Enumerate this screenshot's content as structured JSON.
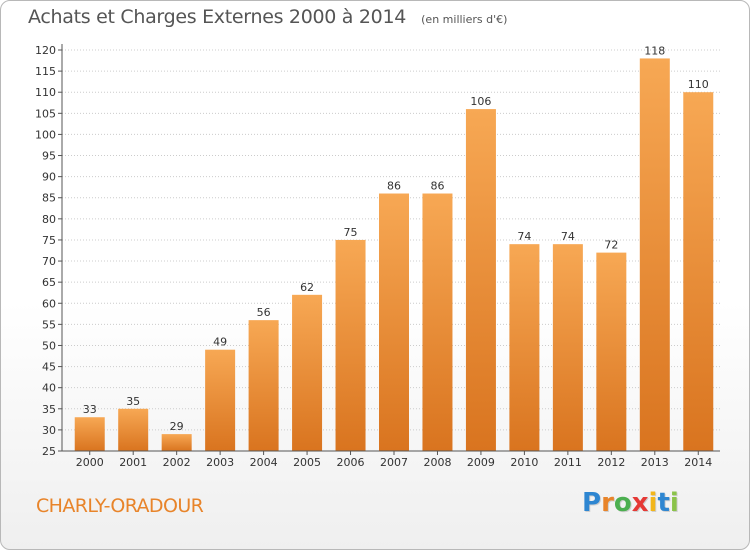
{
  "header": {
    "title": "Achats et Charges Externes 2000 à 2014",
    "subtitle": "(en milliers d'€)"
  },
  "footer": {
    "commune": "CHARLY-ORADOUR",
    "logo_letters": [
      "P",
      "r",
      "o",
      "x",
      "i",
      "t",
      "i"
    ],
    "logo_colors": [
      "#2e86d1",
      "#e8842a",
      "#4caf50",
      "#e53935",
      "#f2b61b",
      "#2e86d1",
      "#8bc34a"
    ]
  },
  "colors": {
    "bar_light": "#f7a854",
    "bar_dark": "#d9741f",
    "grid": "#cccccc",
    "axis": "#555555",
    "title": "#555555",
    "commune": "#e8842a"
  },
  "chart_data": {
    "type": "bar",
    "title": "Achats et Charges Externes 2000 à 2014",
    "subtitle": "(en milliers d'€)",
    "xlabel": "",
    "ylabel": "",
    "categories": [
      "2000",
      "2001",
      "2002",
      "2003",
      "2004",
      "2005",
      "2006",
      "2007",
      "2008",
      "2009",
      "2010",
      "2011",
      "2012",
      "2013",
      "2014"
    ],
    "values": [
      33,
      35,
      29,
      49,
      56,
      62,
      75,
      86,
      86,
      106,
      74,
      74,
      72,
      118,
      110
    ],
    "ylim": [
      25,
      120
    ],
    "yticks": [
      25,
      30,
      35,
      40,
      45,
      50,
      55,
      60,
      65,
      70,
      75,
      80,
      85,
      90,
      95,
      100,
      105,
      110,
      115,
      120
    ],
    "grid": true,
    "legend": "none"
  }
}
